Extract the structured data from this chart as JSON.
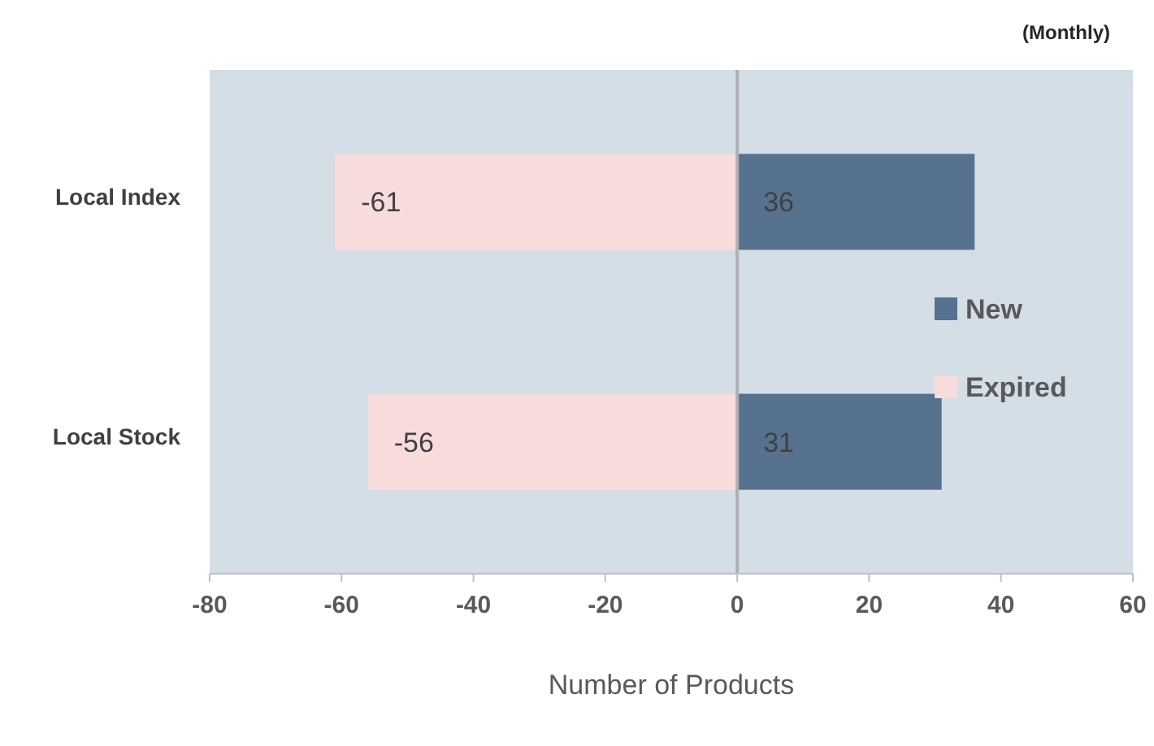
{
  "chart_data": {
    "type": "bar",
    "title": "(Monthly)",
    "xlabel": "Number of Products",
    "orientation": "horizontal",
    "stacked": true,
    "categories": [
      "Local Index",
      "Local Stock"
    ],
    "series": [
      {
        "name": "New",
        "color": "#56728f",
        "values": [
          36,
          31
        ]
      },
      {
        "name": "Expired",
        "color": "#f8dcdc",
        "values": [
          -61,
          -56
        ]
      }
    ],
    "xlim": [
      -80,
      60
    ],
    "xticks": [
      -80,
      -60,
      -40,
      -20,
      0,
      20,
      40,
      60
    ],
    "data_labels": true,
    "legend": "right"
  }
}
